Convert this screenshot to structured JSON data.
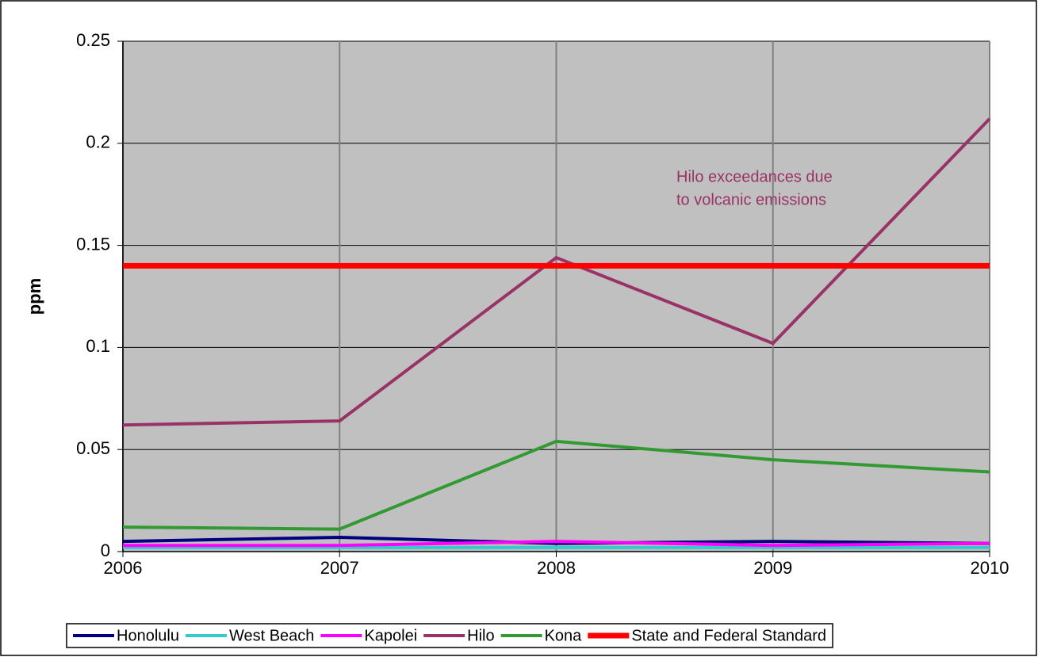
{
  "chart_data": {
    "type": "line",
    "y_label": "ppm",
    "annotation": [
      "Hilo exceedances due",
      "to volcanic emissions"
    ],
    "annotation_color": "#993366",
    "x": [
      2006,
      2007,
      2008,
      2009,
      2010
    ],
    "xlim": [
      2006,
      2010
    ],
    "xticks": [
      2006,
      2007,
      2008,
      2009,
      2010
    ],
    "ylim": [
      0,
      0.25
    ],
    "yticks": [
      0,
      0.05,
      0.1,
      0.15,
      0.2,
      0.25
    ],
    "grid": true,
    "legend": "bottom",
    "background": "#c0c0c0",
    "series": [
      {
        "name": "Honolulu",
        "color": "#000080",
        "values": [
          0.005,
          0.007,
          0.004,
          0.005,
          0.004
        ]
      },
      {
        "name": "West Beach",
        "color": "#33cccc",
        "values": [
          0.002,
          0.002,
          0.002,
          0.002,
          0.002
        ]
      },
      {
        "name": "Kapolei",
        "color": "#ff00ff",
        "values": [
          0.003,
          0.003,
          0.005,
          0.003,
          0.004
        ]
      },
      {
        "name": "Hilo",
        "color": "#993366",
        "values": [
          0.062,
          0.064,
          0.144,
          0.102,
          0.212
        ]
      },
      {
        "name": "Kona",
        "color": "#339933",
        "values": [
          0.012,
          0.011,
          0.054,
          0.045,
          0.039
        ]
      },
      {
        "name": "State and Federal Standard",
        "color": "#ff0000",
        "values": [
          0.14,
          0.14,
          0.14,
          0.14,
          0.14
        ]
      }
    ]
  }
}
